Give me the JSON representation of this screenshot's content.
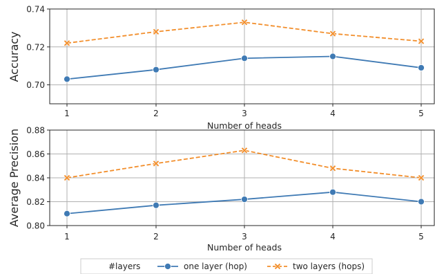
{
  "colors": {
    "one_layer": "#3f7ab4",
    "two_layers": "#f28e2b",
    "grid": "#b0b0b0"
  },
  "chart_data": [
    {
      "type": "line",
      "xlabel": "Number of heads",
      "ylabel": "Accuracy",
      "x": [
        1,
        2,
        3,
        4,
        5
      ],
      "xticks": [
        "1",
        "2",
        "3",
        "4",
        "5"
      ],
      "yticks": [
        "0.70",
        "0.72",
        "0.74"
      ],
      "ylim": [
        0.69,
        0.74
      ],
      "grid": true,
      "series": [
        {
          "name": "one layer (hop)",
          "values": [
            0.703,
            0.708,
            0.714,
            0.715,
            0.709
          ]
        },
        {
          "name": "two layers (hops)",
          "values": [
            0.722,
            0.728,
            0.733,
            0.727,
            0.723
          ]
        }
      ]
    },
    {
      "type": "line",
      "xlabel": "Number of heads",
      "ylabel": "Average Precision",
      "x": [
        1,
        2,
        3,
        4,
        5
      ],
      "xticks": [
        "1",
        "2",
        "3",
        "4",
        "5"
      ],
      "yticks": [
        "0.80",
        "0.82",
        "0.84",
        "0.86",
        "0.88"
      ],
      "ylim": [
        0.8,
        0.88
      ],
      "grid": true,
      "series": [
        {
          "name": "one layer (hop)",
          "values": [
            0.81,
            0.817,
            0.822,
            0.828,
            0.82
          ]
        },
        {
          "name": "two layers (hops)",
          "values": [
            0.84,
            0.852,
            0.863,
            0.848,
            0.84
          ]
        }
      ]
    }
  ],
  "legend": {
    "title": "#layers",
    "items": [
      "one layer (hop)",
      "two layers (hops)"
    ],
    "placement": "bottom-center"
  }
}
